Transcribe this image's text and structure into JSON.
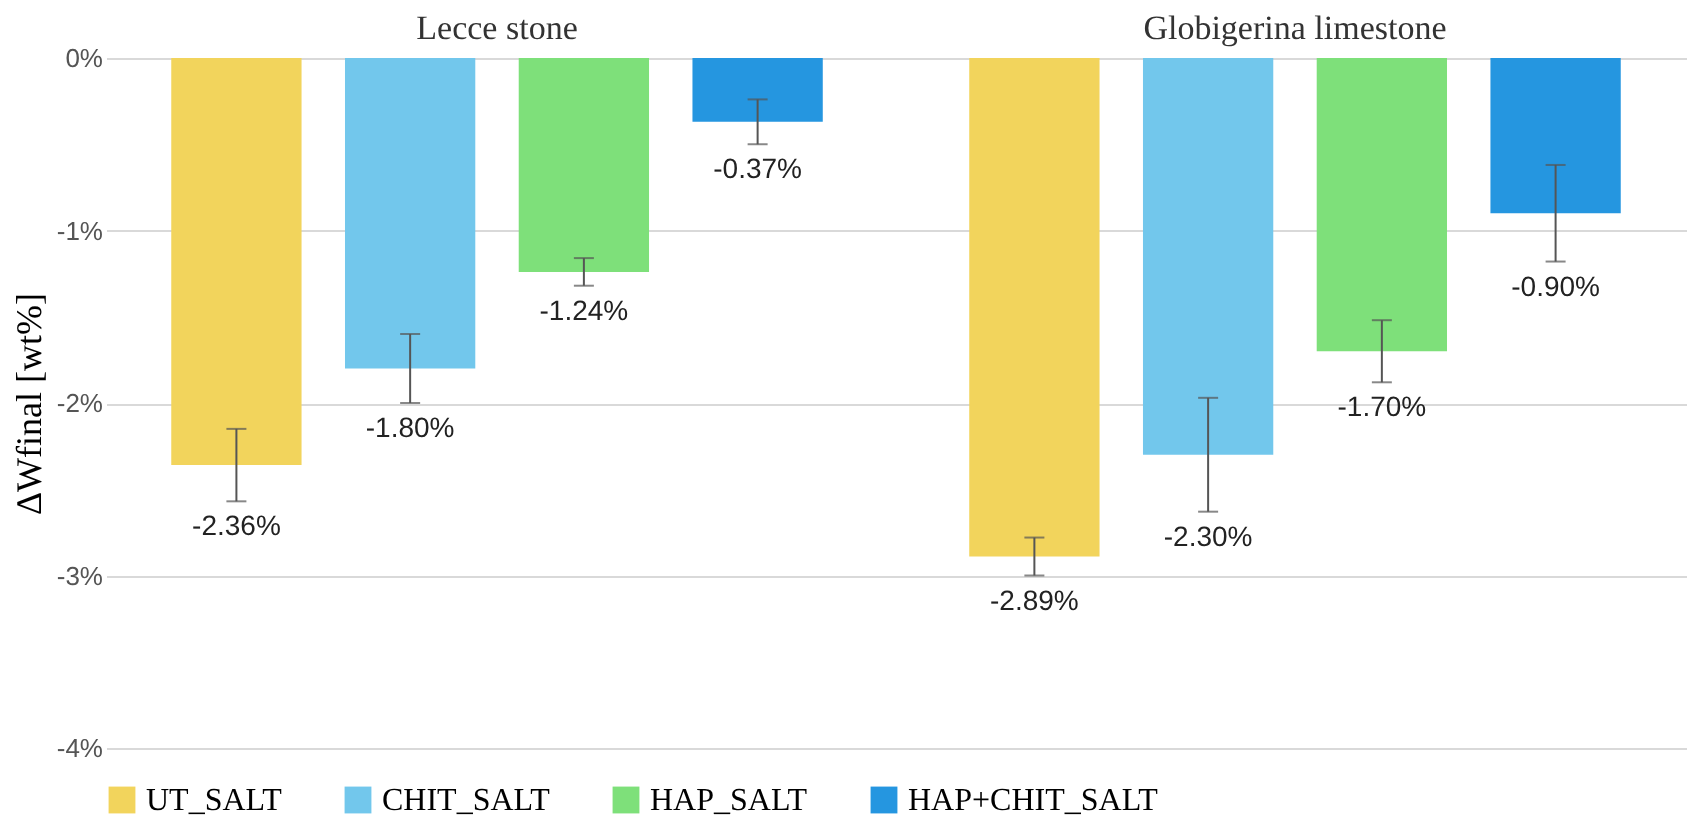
{
  "chart_data": {
    "type": "bar",
    "categories": [
      "Lecce stone",
      "Globigerina limestone"
    ],
    "ylabel": "ΔWfinal [wt%]",
    "ylim": [
      -4,
      0
    ],
    "yticks": [
      {
        "value": 0,
        "label": "0%"
      },
      {
        "value": -1,
        "label": "-1%"
      },
      {
        "value": -2,
        "label": "-2%"
      },
      {
        "value": -3,
        "label": "-3%"
      },
      {
        "value": -4,
        "label": "-4%"
      }
    ],
    "grid": "y",
    "legend": "bottom",
    "series": [
      {
        "name": "UT_SALT",
        "color": "#f2d45c",
        "values": [
          -2.36,
          -2.89
        ],
        "errors": [
          0.21,
          0.11
        ],
        "value_labels": [
          "-2.36%",
          "-2.89%"
        ]
      },
      {
        "name": "CHIT_SALT",
        "color": "#72c7ec",
        "values": [
          -1.8,
          -2.3
        ],
        "errors": [
          0.2,
          0.33
        ],
        "value_labels": [
          "-1.80%",
          "-2.30%"
        ]
      },
      {
        "name": "HAP_SALT",
        "color": "#7ee07a",
        "values": [
          -1.24,
          -1.7
        ],
        "errors": [
          0.08,
          0.18
        ],
        "value_labels": [
          "-1.24%",
          "-1.70%"
        ]
      },
      {
        "name": "HAP+CHIT_SALT",
        "color": "#2596e0",
        "values": [
          -0.37,
          -0.9
        ],
        "errors": [
          0.13,
          0.28
        ],
        "value_labels": [
          "-0.37%",
          "-0.90%"
        ]
      }
    ]
  }
}
